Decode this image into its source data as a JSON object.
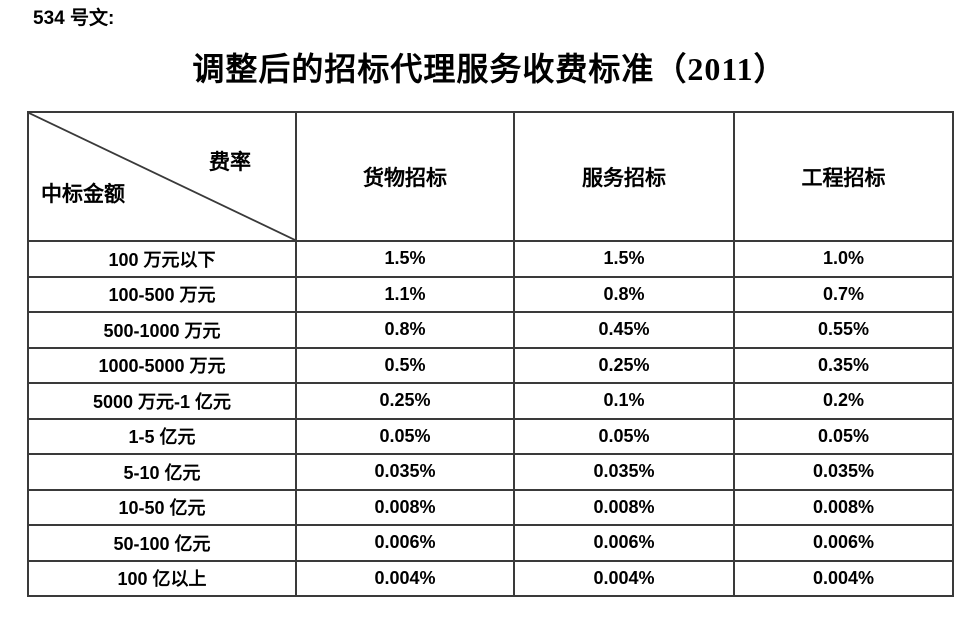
{
  "page": {
    "doc_label": "534 号文:",
    "title": "调整后的招标代理服务收费标准（2011）"
  },
  "table": {
    "corner": {
      "rate_label": "费率",
      "amount_label": "中标金额"
    },
    "columns": [
      "货物招标",
      "服务招标",
      "工程招标"
    ],
    "rows": [
      {
        "label": "100 万元以下",
        "values": [
          "1.5%",
          "1.5%",
          "1.0%"
        ]
      },
      {
        "label": "100-500 万元",
        "values": [
          "1.1%",
          "0.8%",
          "0.7%"
        ]
      },
      {
        "label": "500-1000 万元",
        "values": [
          "0.8%",
          "0.45%",
          "0.55%"
        ]
      },
      {
        "label": "1000-5000 万元",
        "values": [
          "0.5%",
          "0.25%",
          "0.35%"
        ]
      },
      {
        "label": "5000 万元-1 亿元",
        "values": [
          "0.25%",
          "0.1%",
          "0.2%"
        ]
      },
      {
        "label": "1-5 亿元",
        "values": [
          "0.05%",
          "0.05%",
          "0.05%"
        ]
      },
      {
        "label": "5-10 亿元",
        "values": [
          "0.035%",
          "0.035%",
          "0.035%"
        ]
      },
      {
        "label": "10-50 亿元",
        "values": [
          "0.008%",
          "0.008%",
          "0.008%"
        ]
      },
      {
        "label": "50-100 亿元",
        "values": [
          "0.006%",
          "0.006%",
          "0.006%"
        ]
      },
      {
        "label": "100 亿以上",
        "values": [
          "0.004%",
          "0.004%",
          "0.004%"
        ]
      }
    ]
  },
  "colors": {
    "text": "#000000",
    "border": "#3a3a3a",
    "background": "#ffffff"
  }
}
